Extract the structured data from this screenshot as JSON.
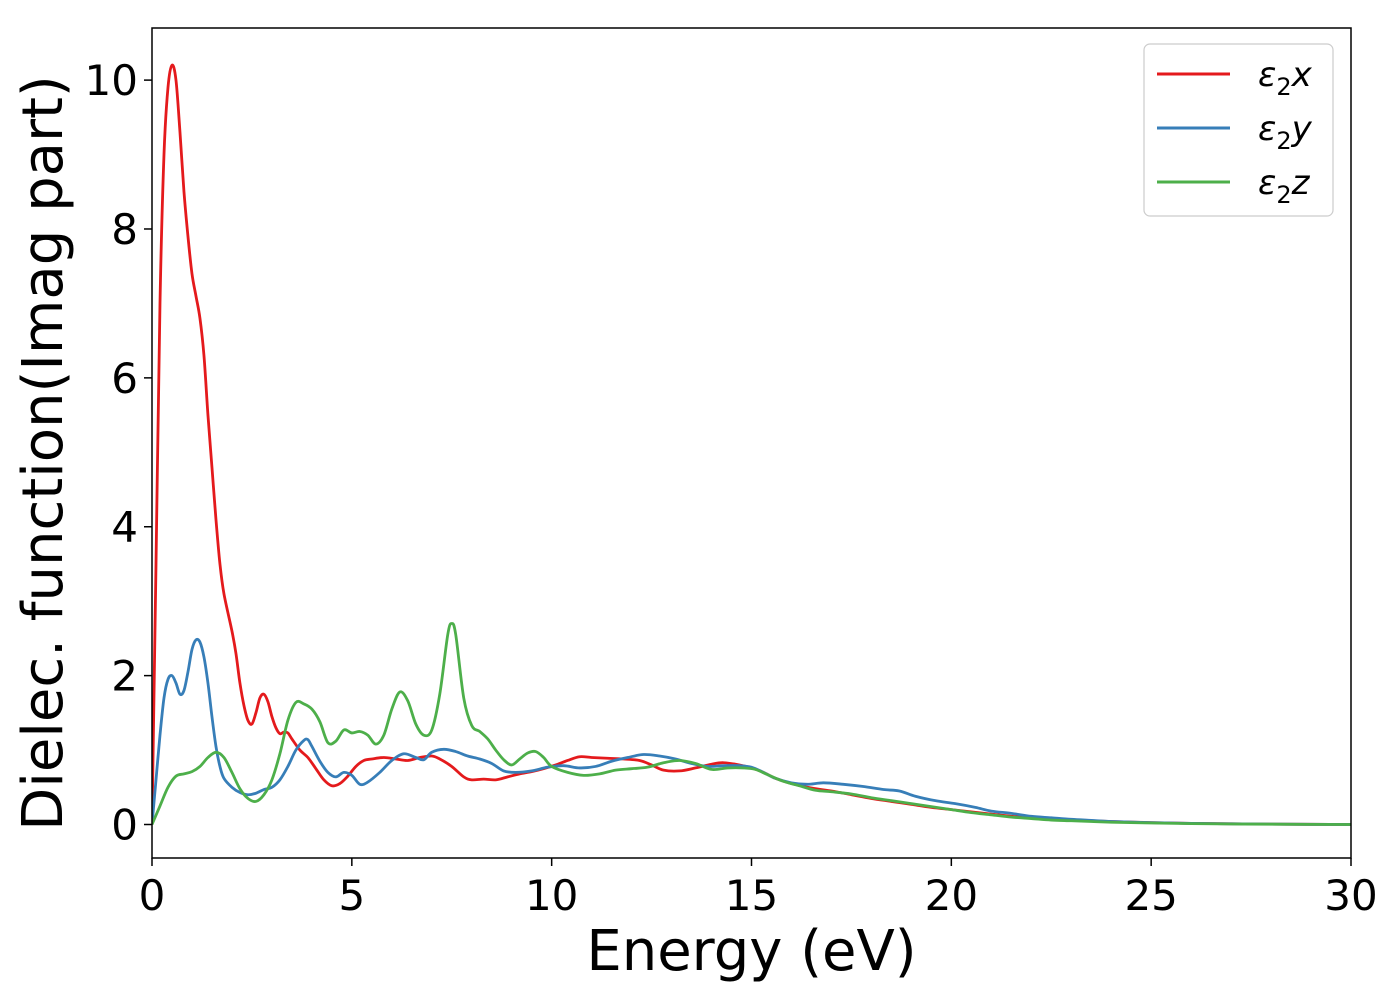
{
  "chart_data": {
    "type": "line",
    "title": "",
    "xlabel": "Energy (eV)",
    "ylabel": "Dielec. function(Imag part)",
    "xlim": [
      0,
      30
    ],
    "ylim": [
      -0.45,
      10.7
    ],
    "xticks": [
      0,
      5,
      10,
      15,
      20,
      25,
      30
    ],
    "xtick_labels": [
      "0",
      "5",
      "10",
      "15",
      "20",
      "25",
      "30"
    ],
    "yticks": [
      0,
      2,
      4,
      6,
      8,
      10
    ],
    "ytick_labels": [
      "0",
      "2",
      "4",
      "6",
      "8",
      "10"
    ],
    "grid": false,
    "legend_position": "top-right",
    "series": [
      {
        "name": "ε2x",
        "legend_base": "ε",
        "legend_sub": "2",
        "legend_suffix": "x",
        "color": "#e41a1c",
        "points": [
          [
            0,
            0
          ],
          [
            0.1,
            3.5
          ],
          [
            0.2,
            7.0
          ],
          [
            0.3,
            9.0
          ],
          [
            0.4,
            9.9
          ],
          [
            0.5,
            10.2
          ],
          [
            0.6,
            10.0
          ],
          [
            0.7,
            9.3
          ],
          [
            0.8,
            8.5
          ],
          [
            0.9,
            7.9
          ],
          [
            1.0,
            7.4
          ],
          [
            1.1,
            7.1
          ],
          [
            1.2,
            6.8
          ],
          [
            1.3,
            6.3
          ],
          [
            1.4,
            5.5
          ],
          [
            1.5,
            4.8
          ],
          [
            1.6,
            4.1
          ],
          [
            1.7,
            3.5
          ],
          [
            1.8,
            3.1
          ],
          [
            2.0,
            2.6
          ],
          [
            2.1,
            2.3
          ],
          [
            2.2,
            1.9
          ],
          [
            2.3,
            1.6
          ],
          [
            2.4,
            1.4
          ],
          [
            2.5,
            1.35
          ],
          [
            2.6,
            1.5
          ],
          [
            2.7,
            1.7
          ],
          [
            2.8,
            1.75
          ],
          [
            2.9,
            1.65
          ],
          [
            3.0,
            1.45
          ],
          [
            3.1,
            1.3
          ],
          [
            3.2,
            1.22
          ],
          [
            3.3,
            1.24
          ],
          [
            3.4,
            1.23
          ],
          [
            3.5,
            1.15
          ],
          [
            3.7,
            1.0
          ],
          [
            3.9,
            0.9
          ],
          [
            4.1,
            0.75
          ],
          [
            4.3,
            0.6
          ],
          [
            4.5,
            0.52
          ],
          [
            4.7,
            0.55
          ],
          [
            4.9,
            0.65
          ],
          [
            5.1,
            0.78
          ],
          [
            5.3,
            0.86
          ],
          [
            5.5,
            0.88
          ],
          [
            5.8,
            0.9
          ],
          [
            6.1,
            0.88
          ],
          [
            6.4,
            0.86
          ],
          [
            6.7,
            0.9
          ],
          [
            7.0,
            0.92
          ],
          [
            7.2,
            0.88
          ],
          [
            7.5,
            0.78
          ],
          [
            7.8,
            0.64
          ],
          [
            8.0,
            0.6
          ],
          [
            8.3,
            0.61
          ],
          [
            8.6,
            0.6
          ],
          [
            8.9,
            0.64
          ],
          [
            9.2,
            0.68
          ],
          [
            9.5,
            0.71
          ],
          [
            9.8,
            0.75
          ],
          [
            10.1,
            0.8
          ],
          [
            10.4,
            0.86
          ],
          [
            10.7,
            0.91
          ],
          [
            11.0,
            0.9
          ],
          [
            11.4,
            0.89
          ],
          [
            11.8,
            0.88
          ],
          [
            12.2,
            0.86
          ],
          [
            12.5,
            0.8
          ],
          [
            12.8,
            0.73
          ],
          [
            13.2,
            0.72
          ],
          [
            13.6,
            0.76
          ],
          [
            14.0,
            0.81
          ],
          [
            14.3,
            0.83
          ],
          [
            14.7,
            0.8
          ],
          [
            15.0,
            0.76
          ],
          [
            15.3,
            0.7
          ],
          [
            15.6,
            0.62
          ],
          [
            16.0,
            0.55
          ],
          [
            16.5,
            0.49
          ],
          [
            17.0,
            0.45
          ],
          [
            17.5,
            0.4
          ],
          [
            18.0,
            0.35
          ],
          [
            18.5,
            0.31
          ],
          [
            19.0,
            0.27
          ],
          [
            19.5,
            0.23
          ],
          [
            20.0,
            0.2
          ],
          [
            20.5,
            0.17
          ],
          [
            21.0,
            0.14
          ],
          [
            21.5,
            0.11
          ],
          [
            22.0,
            0.09
          ],
          [
            22.5,
            0.07
          ],
          [
            23.0,
            0.06
          ],
          [
            23.5,
            0.05
          ],
          [
            24.0,
            0.04
          ],
          [
            25.0,
            0.025
          ],
          [
            26.0,
            0.015
          ],
          [
            27.0,
            0.01
          ],
          [
            28.0,
            0.005
          ],
          [
            30.0,
            0.0
          ]
        ]
      },
      {
        "name": "ε2y",
        "legend_base": "ε",
        "legend_sub": "2",
        "legend_suffix": "y",
        "color": "#377eb8",
        "points": [
          [
            0,
            0
          ],
          [
            0.1,
            0.6
          ],
          [
            0.2,
            1.2
          ],
          [
            0.3,
            1.7
          ],
          [
            0.4,
            1.95
          ],
          [
            0.5,
            2.0
          ],
          [
            0.6,
            1.9
          ],
          [
            0.7,
            1.75
          ],
          [
            0.8,
            1.8
          ],
          [
            0.9,
            2.05
          ],
          [
            1.0,
            2.35
          ],
          [
            1.1,
            2.48
          ],
          [
            1.2,
            2.45
          ],
          [
            1.3,
            2.25
          ],
          [
            1.4,
            1.9
          ],
          [
            1.5,
            1.45
          ],
          [
            1.6,
            1.05
          ],
          [
            1.7,
            0.78
          ],
          [
            1.8,
            0.62
          ],
          [
            2.0,
            0.5
          ],
          [
            2.2,
            0.43
          ],
          [
            2.4,
            0.4
          ],
          [
            2.6,
            0.42
          ],
          [
            2.8,
            0.47
          ],
          [
            3.0,
            0.5
          ],
          [
            3.2,
            0.6
          ],
          [
            3.4,
            0.78
          ],
          [
            3.6,
            1.0
          ],
          [
            3.8,
            1.13
          ],
          [
            3.9,
            1.14
          ],
          [
            4.0,
            1.05
          ],
          [
            4.2,
            0.85
          ],
          [
            4.4,
            0.7
          ],
          [
            4.6,
            0.64
          ],
          [
            4.8,
            0.7
          ],
          [
            5.0,
            0.66
          ],
          [
            5.2,
            0.54
          ],
          [
            5.4,
            0.57
          ],
          [
            5.7,
            0.7
          ],
          [
            6.0,
            0.86
          ],
          [
            6.3,
            0.95
          ],
          [
            6.6,
            0.9
          ],
          [
            6.8,
            0.87
          ],
          [
            7.0,
            0.97
          ],
          [
            7.3,
            1.01
          ],
          [
            7.6,
            0.98
          ],
          [
            7.9,
            0.92
          ],
          [
            8.2,
            0.88
          ],
          [
            8.5,
            0.82
          ],
          [
            8.8,
            0.72
          ],
          [
            9.1,
            0.7
          ],
          [
            9.5,
            0.72
          ],
          [
            9.9,
            0.77
          ],
          [
            10.3,
            0.79
          ],
          [
            10.7,
            0.76
          ],
          [
            11.1,
            0.78
          ],
          [
            11.5,
            0.85
          ],
          [
            11.9,
            0.9
          ],
          [
            12.3,
            0.94
          ],
          [
            12.7,
            0.92
          ],
          [
            13.1,
            0.88
          ],
          [
            13.5,
            0.82
          ],
          [
            13.9,
            0.78
          ],
          [
            14.3,
            0.79
          ],
          [
            14.7,
            0.79
          ],
          [
            15.0,
            0.77
          ],
          [
            15.3,
            0.7
          ],
          [
            15.6,
            0.62
          ],
          [
            16.0,
            0.56
          ],
          [
            16.4,
            0.54
          ],
          [
            16.8,
            0.56
          ],
          [
            17.3,
            0.54
          ],
          [
            17.8,
            0.51
          ],
          [
            18.3,
            0.47
          ],
          [
            18.7,
            0.45
          ],
          [
            19.1,
            0.38
          ],
          [
            19.6,
            0.32
          ],
          [
            20.1,
            0.28
          ],
          [
            20.6,
            0.23
          ],
          [
            21.0,
            0.18
          ],
          [
            21.5,
            0.15
          ],
          [
            22.0,
            0.11
          ],
          [
            22.5,
            0.09
          ],
          [
            23.0,
            0.07
          ],
          [
            23.5,
            0.055
          ],
          [
            24.0,
            0.04
          ],
          [
            25.0,
            0.025
          ],
          [
            26.0,
            0.015
          ],
          [
            27.0,
            0.01
          ],
          [
            28.0,
            0.005
          ],
          [
            30.0,
            0.0
          ]
        ]
      },
      {
        "name": "ε2z",
        "legend_base": "ε",
        "legend_sub": "2",
        "legend_suffix": "z",
        "color": "#4daf4a",
        "points": [
          [
            0,
            0
          ],
          [
            0.2,
            0.25
          ],
          [
            0.4,
            0.5
          ],
          [
            0.6,
            0.65
          ],
          [
            0.8,
            0.68
          ],
          [
            1.0,
            0.71
          ],
          [
            1.2,
            0.78
          ],
          [
            1.4,
            0.9
          ],
          [
            1.6,
            0.97
          ],
          [
            1.8,
            0.9
          ],
          [
            2.0,
            0.7
          ],
          [
            2.2,
            0.48
          ],
          [
            2.4,
            0.35
          ],
          [
            2.6,
            0.31
          ],
          [
            2.8,
            0.4
          ],
          [
            3.0,
            0.6
          ],
          [
            3.2,
            0.95
          ],
          [
            3.4,
            1.4
          ],
          [
            3.6,
            1.64
          ],
          [
            3.8,
            1.62
          ],
          [
            4.0,
            1.55
          ],
          [
            4.2,
            1.38
          ],
          [
            4.4,
            1.1
          ],
          [
            4.6,
            1.12
          ],
          [
            4.8,
            1.27
          ],
          [
            5.0,
            1.23
          ],
          [
            5.2,
            1.25
          ],
          [
            5.4,
            1.2
          ],
          [
            5.6,
            1.08
          ],
          [
            5.8,
            1.2
          ],
          [
            6.0,
            1.55
          ],
          [
            6.2,
            1.78
          ],
          [
            6.4,
            1.66
          ],
          [
            6.6,
            1.35
          ],
          [
            6.8,
            1.2
          ],
          [
            7.0,
            1.27
          ],
          [
            7.2,
            1.75
          ],
          [
            7.4,
            2.55
          ],
          [
            7.5,
            2.7
          ],
          [
            7.6,
            2.55
          ],
          [
            7.8,
            1.7
          ],
          [
            8.0,
            1.33
          ],
          [
            8.2,
            1.25
          ],
          [
            8.4,
            1.15
          ],
          [
            8.6,
            1.0
          ],
          [
            8.8,
            0.87
          ],
          [
            9.0,
            0.8
          ],
          [
            9.2,
            0.88
          ],
          [
            9.4,
            0.96
          ],
          [
            9.6,
            0.98
          ],
          [
            9.8,
            0.9
          ],
          [
            10.0,
            0.78
          ],
          [
            10.4,
            0.7
          ],
          [
            10.8,
            0.66
          ],
          [
            11.2,
            0.68
          ],
          [
            11.6,
            0.73
          ],
          [
            12.0,
            0.75
          ],
          [
            12.4,
            0.77
          ],
          [
            12.8,
            0.83
          ],
          [
            13.2,
            0.86
          ],
          [
            13.6,
            0.82
          ],
          [
            14.0,
            0.74
          ],
          [
            14.4,
            0.76
          ],
          [
            14.8,
            0.76
          ],
          [
            15.1,
            0.74
          ],
          [
            15.4,
            0.67
          ],
          [
            15.8,
            0.58
          ],
          [
            16.2,
            0.52
          ],
          [
            16.6,
            0.46
          ],
          [
            17.0,
            0.44
          ],
          [
            17.5,
            0.41
          ],
          [
            18.0,
            0.36
          ],
          [
            18.5,
            0.32
          ],
          [
            19.0,
            0.28
          ],
          [
            19.5,
            0.24
          ],
          [
            20.0,
            0.2
          ],
          [
            20.5,
            0.16
          ],
          [
            21.0,
            0.13
          ],
          [
            21.5,
            0.1
          ],
          [
            22.0,
            0.08
          ],
          [
            22.5,
            0.06
          ],
          [
            23.0,
            0.05
          ],
          [
            23.5,
            0.04
          ],
          [
            24.0,
            0.03
          ],
          [
            25.0,
            0.02
          ],
          [
            26.0,
            0.012
          ],
          [
            27.0,
            0.007
          ],
          [
            28.0,
            0.004
          ],
          [
            30.0,
            0.0
          ]
        ]
      }
    ]
  }
}
